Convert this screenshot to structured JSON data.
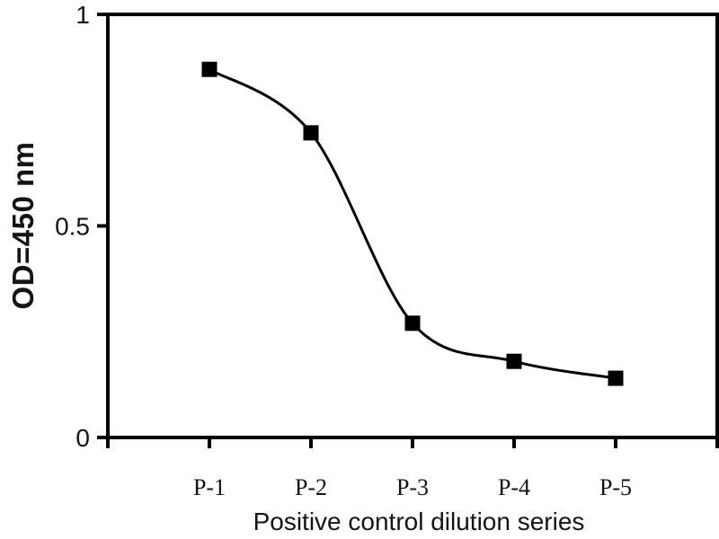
{
  "figure": {
    "background": "#ffffff",
    "axis_color": "#000000",
    "text_color": "#141414"
  },
  "chart_data": {
    "type": "line",
    "title": "",
    "categories": [
      "P-1",
      "P-2",
      "P-3",
      "P-4",
      "P-5"
    ],
    "values": [
      0.87,
      0.72,
      0.27,
      0.18,
      0.14
    ],
    "xlabel": "Positive control dilution series",
    "ylabel": "OD=450 nm",
    "ylim": [
      0,
      1
    ],
    "yticks": [
      {
        "value": 1,
        "label": "1"
      },
      {
        "value": 0.5,
        "label": "0.5"
      },
      {
        "value": 0,
        "label": "0"
      }
    ],
    "grid": false,
    "legend": false,
    "curve": "smooth",
    "marker": "filled-square",
    "line_color": "#000000",
    "marker_color": "#000000"
  }
}
